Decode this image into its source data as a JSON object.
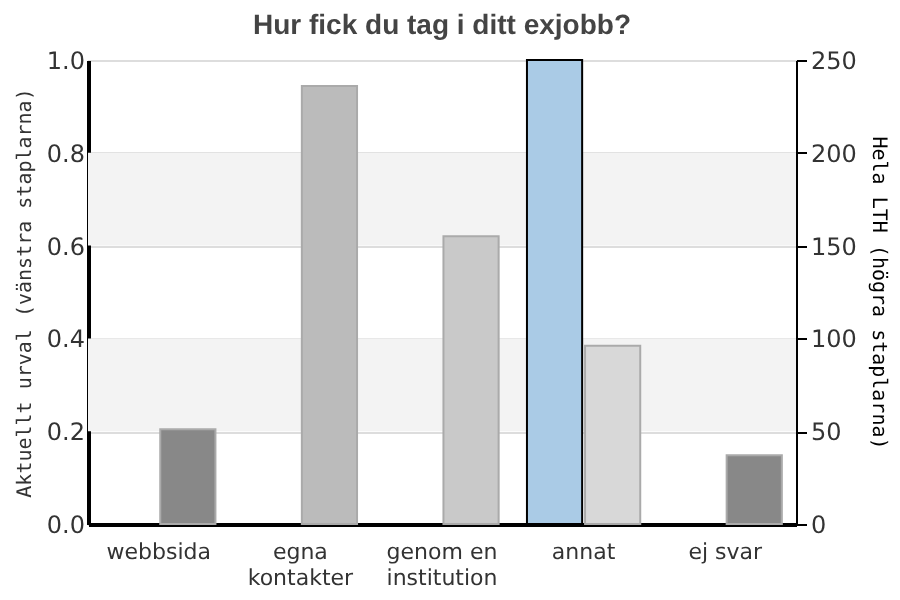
{
  "chart_data": {
    "type": "bar",
    "title": "Hur fick du tag i ditt exjobb?",
    "categories": [
      "webbsida",
      "egna kontakter",
      "genom en institution",
      "annat",
      "ej svar"
    ],
    "ylabel": "Aktuellt urval (vänstra staplarna)",
    "y2label": "Hela LTH (högra staplarna)",
    "series": [
      {
        "colors": [
          "#aacbe6",
          "#aacbe6",
          "#aacbe6",
          "#aacbe6",
          "#aacbe6"
        ],
        "values": [
          null,
          null,
          null,
          1.0,
          null
        ]
      },
      {
        "axis": "y2",
        "colors": [
          "#888888",
          "#bbbbbb",
          "#c9c9c9",
          "#d8d8d8",
          "#888888"
        ],
        "values": [
          51,
          236,
          155,
          96,
          37
        ]
      }
    ],
    "ylim": [
      0,
      1.0
    ],
    "yticks": [
      {
        "value": 0,
        "label": "0.0"
      },
      0.2,
      0.4,
      0.6,
      0.8,
      {
        "value": 1,
        "label": "1.0"
      }
    ],
    "y2lim": [
      0,
      250
    ],
    "y2ticks": [
      0,
      50,
      100,
      150,
      200,
      250
    ],
    "bands": [
      {
        "axis": "y",
        "from": 0.2,
        "to": 0.4,
        "color": "#f3f3f3"
      },
      {
        "axis": "y",
        "from": 0.6,
        "to": 0.8,
        "color": "#f3f3f3"
      }
    ],
    "grid": "y"
  }
}
